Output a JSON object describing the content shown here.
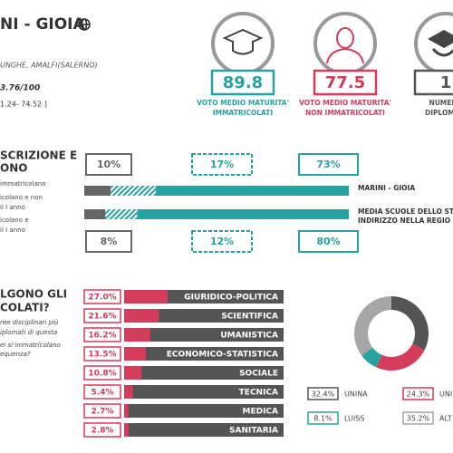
{
  "header": {
    "title": "NI - GIOIA",
    "address": "UNGHE, AMALFI(SALERNO)",
    "score": "3.76/100",
    "range": "1.24- 74.52 ]"
  },
  "stats": [
    {
      "value": 89.8,
      "label_lines": [
        "VOTO MEDIO MATURITA'",
        "IMMATRICOLATI"
      ],
      "color": "#26a3a0"
    },
    {
      "value": 77.5,
      "label_lines": [
        "VOTO MEDIO MATURITA'",
        "NON IMMATRICOLATI"
      ],
      "color": "#d33c5a"
    },
    {
      "value": 1,
      "label_lines": [
        "NUMERO",
        "DIPLOMATI"
      ],
      "color": "#555555"
    }
  ],
  "enrollment": {
    "title_lines": [
      "SCRIZIONE E",
      "ONO"
    ],
    "legend_lines": [
      "immatricolano",
      "icolano e non",
      "il I anno",
      "icolano e",
      "il I anno"
    ],
    "colors": [
      "#666666",
      "#26a3a0",
      "#26a3a0"
    ],
    "rows": [
      {
        "name_lines": [
          "MARINI - GIOIA"
        ],
        "values": [
          10,
          17,
          73
        ],
        "value_labels": [
          "10%",
          "17%",
          "73%"
        ]
      },
      {
        "name_lines": [
          "MEDIA SCUOLE DELLO ST",
          "INDIRIZZO NELLA REGIO"
        ],
        "values": [
          8,
          12,
          80
        ],
        "value_labels": [
          "8%",
          "12%",
          "80%"
        ]
      }
    ]
  },
  "disciplines": {
    "title_lines": [
      "LGONO GLI",
      "COLATI?"
    ],
    "note_lines": [
      "ree disciplinari più",
      "iplomati di questa",
      "ei si immatricolano",
      "equenza?"
    ],
    "categories": [
      "GIURIDICO-POLITICA",
      "SCIENTIFICA",
      "UMANISTICA",
      "ECONOMICO-STATISTICA",
      "SOCIALE",
      "TECNICA",
      "MEDICA",
      "SANITARIA"
    ],
    "values": [
      27.0,
      21.6,
      16.2,
      13.5,
      10.8,
      5.4,
      2.7,
      2.8
    ],
    "value_labels": [
      "27.0%",
      "21.6%",
      "16.2%",
      "13.5%",
      "10.8%",
      "5.4%",
      "2.7%",
      "2.8%"
    ],
    "color": "#d33c5a"
  },
  "universities": {
    "names": [
      "UNINA",
      "UNI",
      "LUISS",
      "ALT"
    ],
    "values": [
      32.4,
      24.3,
      8.1,
      35.2
    ],
    "value_labels": [
      "32.4%",
      "24.3%",
      "8.1%",
      "35.2%"
    ],
    "colors": [
      "#555555",
      "#d33c5a",
      "#26a3a0",
      "#a6a6a6"
    ]
  }
}
